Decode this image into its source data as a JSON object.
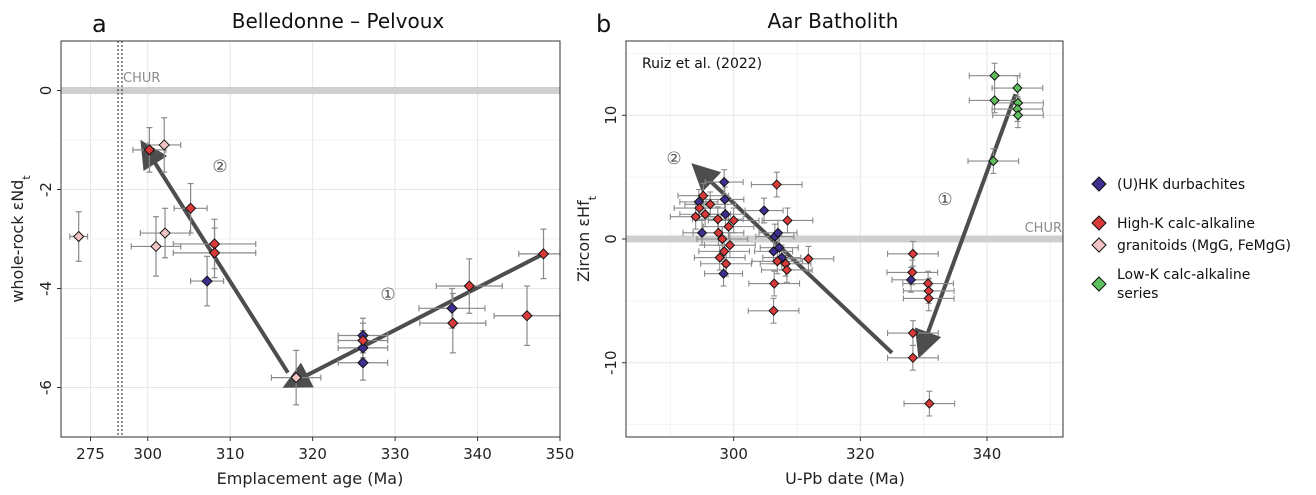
{
  "chart_data": [
    {
      "type": "scatter",
      "panel_label": "a",
      "title": "Belledonne – Pelvoux",
      "xlabel": "Emplacement age (Ma)",
      "ylabel": "whole-rock εNd",
      "ylabel_sub": "t",
      "xlim": [
        265,
        350
      ],
      "ylim": [
        -7,
        1
      ],
      "xticks": [
        275,
        300,
        310,
        320,
        330,
        340,
        350
      ],
      "xtick_labels": [
        "275",
        "300",
        "310",
        "320",
        "330",
        "340",
        "350"
      ],
      "yticks": [
        0,
        -2,
        -4,
        -6
      ],
      "ytick_labels": [
        "0",
        "-2",
        "-4",
        "-6"
      ],
      "axis_break_at": 285,
      "grid": true,
      "chur_label": "CHUR",
      "chur_value": 0,
      "step_labels": [
        "②",
        "①"
      ],
      "series": [
        {
          "name": "(U)HK durbachites",
          "color": "#3d2f8f",
          "points": [
            [
              307.2,
              -3.85,
              2,
              0.5
            ],
            [
              326.1,
              -4.95,
              3,
              0.35
            ],
            [
              326.1,
              -5.2,
              3,
              0.35
            ],
            [
              326.1,
              -5.5,
              3,
              0.35
            ],
            [
              336.9,
              -4.4,
              4,
              0.4
            ]
          ]
        },
        {
          "name": "High-K calc-alkaline granitoids (MgG, FeMgG)",
          "color": "#d93a3a",
          "points": [
            [
              300.2,
              -1.2,
              2,
              0.45
            ],
            [
              305.2,
              -2.38,
              2,
              0.5
            ],
            [
              308.1,
              -3.1,
              5,
              0.5
            ],
            [
              308.1,
              -3.28,
              5,
              0.5
            ],
            [
              326.1,
              -5.05,
              3,
              0.35
            ],
            [
              337.0,
              -4.7,
              4,
              0.6
            ],
            [
              339.0,
              -3.95,
              4,
              0.55
            ],
            [
              346.0,
              -4.55,
              4,
              0.6
            ],
            [
              348.0,
              -3.3,
              3,
              0.5
            ]
          ]
        },
        {
          "name": "granitoids pale",
          "color": "#f2c4c4",
          "points": [
            [
              271.0,
              -2.95,
              3,
              0.5
            ],
            [
              302.0,
              -1.1,
              2,
              0.55
            ],
            [
              301.0,
              -3.15,
              3,
              0.6
            ],
            [
              302.1,
              -2.88,
              3,
              0.5
            ],
            [
              318.0,
              -5.8,
              3,
              0.55
            ]
          ]
        }
      ],
      "arrows": [
        {
          "from": [
            317,
            -5.7
          ],
          "to": [
            299.5,
            -1.1
          ]
        },
        {
          "from": [
            348,
            -3.3
          ],
          "to": [
            317,
            -5.95
          ]
        }
      ]
    },
    {
      "type": "scatter",
      "panel_label": "b",
      "title": "Aar Batholith",
      "annotation": "Ruiz et al. (2022)",
      "xlabel": "U-Pb date (Ma)",
      "ylabel": "Zircon εHf",
      "ylabel_sub": "t",
      "xlim": [
        283,
        352
      ],
      "ylim": [
        -16,
        16
      ],
      "xticks": [
        300,
        320,
        340
      ],
      "xtick_labels": [
        "300",
        "320",
        "340"
      ],
      "yticks": [
        10,
        0,
        -10
      ],
      "ytick_labels": [
        "10",
        "0",
        "-10"
      ],
      "grid": true,
      "chur_label": "CHUR",
      "chur_value": 0,
      "step_labels": [
        "②",
        "①"
      ],
      "series": [
        {
          "name": "(U)HK durbachites",
          "color": "#3d2f8f",
          "points": [
            [
              295.0,
              0.5,
              3,
              1.0
            ],
            [
              294.5,
              3.0,
              3,
              1.0
            ],
            [
              298.5,
              4.6,
              3,
              1.0
            ],
            [
              298.6,
              3.2,
              3,
              1.0
            ],
            [
              298.7,
              2.0,
              3,
              1.0
            ],
            [
              298.4,
              -2.8,
              3,
              1.0
            ],
            [
              304.8,
              2.3,
              3,
              1.0
            ],
            [
              306.5,
              0.2,
              3,
              1.0
            ],
            [
              306.3,
              -1.0,
              3,
              1.0
            ],
            [
              307.2,
              -0.7,
              3,
              1.0
            ],
            [
              307.6,
              -1.5,
              3,
              1.0
            ],
            [
              307.0,
              0.5,
              3,
              1.0
            ],
            [
              328.0,
              -3.3,
              3,
              1.0
            ]
          ]
        },
        {
          "name": "High-K calc-alkaline granitoids (MgG, FeMgG)",
          "color": "#d93a3a",
          "points": [
            [
              294.0,
              1.8,
              4,
              1.0
            ],
            [
              294.6,
              2.5,
              4,
              1.0
            ],
            [
              295.2,
              3.5,
              4,
              1.0
            ],
            [
              295.5,
              2.0,
              4,
              1.0
            ],
            [
              296.3,
              2.8,
              4,
              1.0
            ],
            [
              297.5,
              1.6,
              4,
              1.0
            ],
            [
              297.6,
              0.5,
              4,
              1.0
            ],
            [
              297.8,
              -1.5,
              4,
              1.0
            ],
            [
              298.2,
              0.0,
              4,
              1.0
            ],
            [
              298.5,
              -1.0,
              4,
              1.0
            ],
            [
              298.8,
              -2.0,
              4,
              1.0
            ],
            [
              299.2,
              1.0,
              4,
              1.0
            ],
            [
              299.4,
              -0.5,
              4,
              1.0
            ],
            [
              300.0,
              1.5,
              4,
              1.0
            ],
            [
              306.8,
              4.4,
              4,
              1.0
            ],
            [
              306.9,
              -1.8,
              4,
              1.0
            ],
            [
              306.4,
              -3.6,
              4,
              1.0
            ],
            [
              306.3,
              -5.8,
              4,
              1.0
            ],
            [
              308.2,
              -2.0,
              4,
              1.0
            ],
            [
              308.4,
              -2.5,
              4,
              1.0
            ],
            [
              308.5,
              1.5,
              4,
              1.0
            ],
            [
              311.8,
              -1.6,
              4,
              1.0
            ],
            [
              328.3,
              -1.2,
              4,
              1.0
            ],
            [
              328.2,
              -2.7,
              4,
              1.0
            ],
            [
              328.3,
              -7.6,
              4,
              1.0
            ],
            [
              328.3,
              -9.6,
              4,
              1.0
            ],
            [
              330.7,
              -3.6,
              4,
              1.0
            ],
            [
              330.8,
              -4.2,
              4,
              1.0
            ],
            [
              330.8,
              -4.8,
              4,
              1.0
            ],
            [
              330.9,
              -13.3,
              4,
              1.0
            ]
          ]
        },
        {
          "name": "Low-K calc-alkaline series",
          "color": "#5fbf5f",
          "points": [
            [
              341.2,
              13.2,
              4,
              1.0
            ],
            [
              341.2,
              11.2,
              4,
              1.0
            ],
            [
              341.0,
              6.3,
              4,
              1.0
            ],
            [
              344.8,
              12.2,
              4,
              1.0
            ],
            [
              344.9,
              11.0,
              4,
              1.0
            ],
            [
              344.8,
              10.5,
              4,
              1.0
            ],
            [
              344.9,
              10.0,
              4,
              1.0
            ]
          ]
        }
      ],
      "arrows": [
        {
          "from": [
            325,
            -9.2
          ],
          "to": [
            294,
            5.8
          ]
        },
        {
          "from": [
            344.5,
            11.7
          ],
          "to": [
            329.5,
            -9.2
          ]
        }
      ]
    }
  ],
  "legend": {
    "items": [
      {
        "color": "#3d2f8f",
        "lines": [
          "(U)HK durbachites"
        ]
      },
      {
        "color": "#d93a3a",
        "lines": [
          "High-K calc-alkaline"
        ]
      },
      {
        "color": "#f2c4c4",
        "lines": [
          "granitoids (MgG, FeMgG)"
        ]
      },
      {
        "color": "#5fbf5f",
        "lines": [
          "Low-K calc-alkaline",
          "series"
        ]
      }
    ]
  }
}
